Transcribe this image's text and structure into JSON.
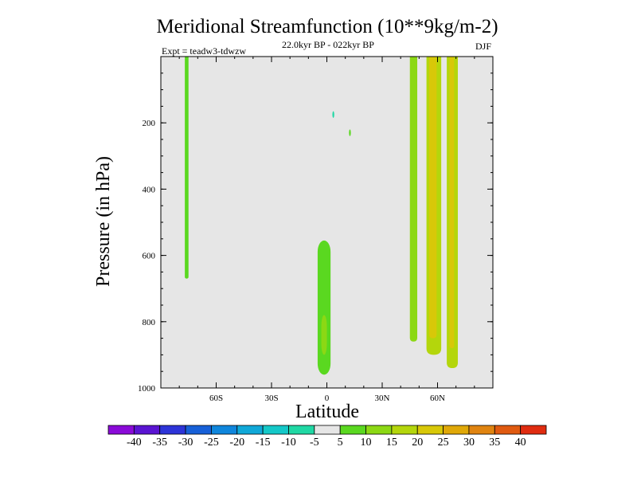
{
  "chart_data": {
    "type": "heatmap",
    "title": "Meridional Streamfunction (10**9kg/m-2)",
    "subtitle": "22.0kyr BP - 022kyr BP",
    "left_label": "Expt = teadw3-tdwzw",
    "right_label": "DJF",
    "xlabel": "Latitude",
    "ylabel": "Pressure (in hPa)",
    "xlim": [
      -90,
      90
    ],
    "ylim": [
      0,
      1000
    ],
    "y_reversed": true,
    "x_ticks": [
      {
        "value": -60,
        "label": "60S"
      },
      {
        "value": -30,
        "label": "30S"
      },
      {
        "value": 0,
        "label": "0"
      },
      {
        "value": 30,
        "label": "30N"
      },
      {
        "value": 60,
        "label": "60N"
      }
    ],
    "y_ticks": [
      {
        "value": 200,
        "label": "200"
      },
      {
        "value": 400,
        "label": "400"
      },
      {
        "value": 600,
        "label": "600"
      },
      {
        "value": 800,
        "label": "800"
      },
      {
        "value": 1000,
        "label": "1000"
      }
    ],
    "background_value_range": "-5 to 5",
    "colorbar": {
      "labels": [
        "-40",
        "-35",
        "-30",
        "-25",
        "-20",
        "-15",
        "-10",
        "-5",
        "5",
        "10",
        "15",
        "20",
        "25",
        "30",
        "35",
        "40"
      ],
      "colors": [
        "#8a0ad8",
        "#5a14d2",
        "#2d34d8",
        "#1760d8",
        "#0f86dc",
        "#10a8d8",
        "#14c8c8",
        "#20d8a4",
        "#e6e6e6",
        "#5ad820",
        "#8cd814",
        "#b4d60c",
        "#d8c808",
        "#e0a808",
        "#e08410",
        "#e05a10",
        "#e02c10"
      ]
    },
    "features": [
      {
        "name": "feature-sh-70s-column",
        "lat_range": [
          -77,
          -75
        ],
        "pressure_range": [
          0,
          670
        ],
        "value": 7
      },
      {
        "name": "feature-equatorial-cell",
        "lat_range": [
          -5,
          2
        ],
        "pressure_range": [
          555,
          960
        ],
        "value": 7
      },
      {
        "name": "feature-equatorial-core",
        "lat_range": [
          -3,
          0
        ],
        "pressure_range": [
          780,
          900
        ],
        "value": 12
      },
      {
        "name": "feature-45n-column",
        "lat_range": [
          45,
          49
        ],
        "pressure_range": [
          0,
          860
        ],
        "value": 10
      },
      {
        "name": "feature-57n-column",
        "lat_range": [
          54,
          62
        ],
        "pressure_range": [
          0,
          900
        ],
        "value": 15
      },
      {
        "name": "feature-57n-core",
        "lat_range": [
          55.5,
          59.5
        ],
        "pressure_range": [
          0,
          850
        ],
        "value": 22
      },
      {
        "name": "feature-67n-column",
        "lat_range": [
          65,
          71
        ],
        "pressure_range": [
          0,
          940
        ],
        "value": 15
      },
      {
        "name": "feature-67n-core",
        "lat_range": [
          66.5,
          69
        ],
        "pressure_range": [
          0,
          880
        ],
        "value": 20
      },
      {
        "name": "feature-small-cyan-blob",
        "lat_range": [
          3,
          4
        ],
        "pressure_range": [
          165,
          185
        ],
        "value": -7
      },
      {
        "name": "feature-small-green-blob",
        "lat_range": [
          12,
          13
        ],
        "pressure_range": [
          220,
          240
        ],
        "value": 7
      }
    ]
  }
}
